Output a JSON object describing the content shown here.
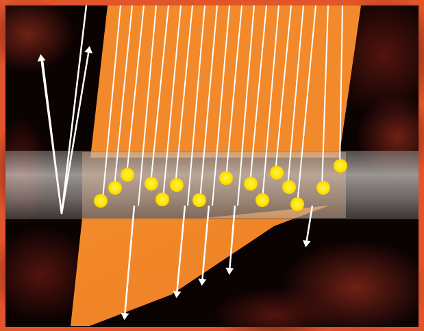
{
  "image": {
    "description_name": "laser-beam-through-film",
    "colors": {
      "frame": "#e2552a",
      "background": "#0b0202",
      "smoke": "#6b1d14",
      "beam": "#f28a2c",
      "ray": "#ffffff",
      "film": "#d9d4d0",
      "particle": "#ffe600"
    },
    "elements": {
      "incident_rays": 19,
      "reflected_rays": 2,
      "transmitted_rays": 5,
      "particles": 19
    }
  }
}
